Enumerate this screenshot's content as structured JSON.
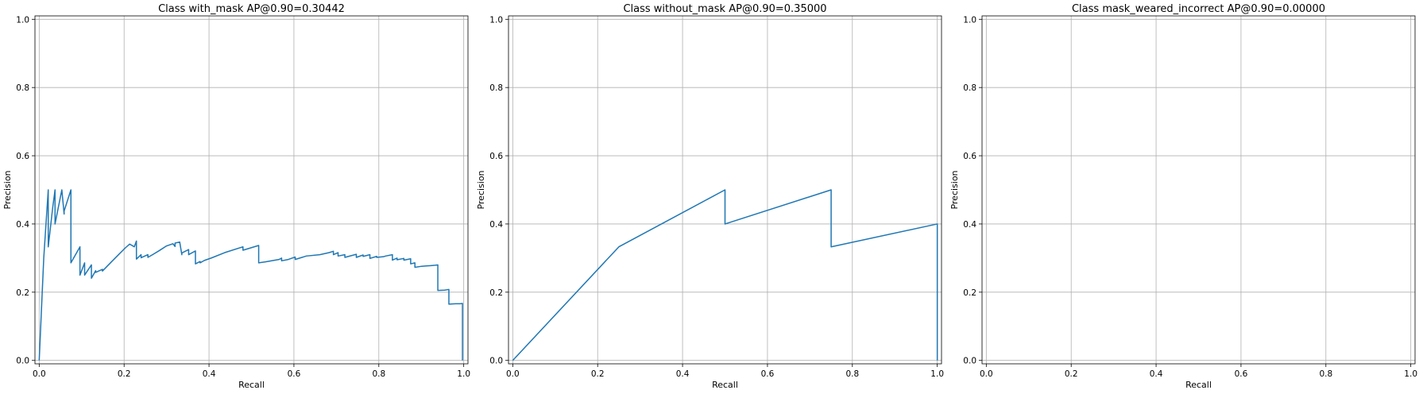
{
  "chart_data": [
    {
      "type": "line",
      "title": "Class with_mask AP@0.90=0.30442",
      "xlabel": "Recall",
      "ylabel": "Precision",
      "xlim": [
        -0.01,
        1.01
      ],
      "ylim": [
        -0.01,
        1.01
      ],
      "xticks": [
        "0.0",
        "0.2",
        "0.4",
        "0.6",
        "0.8",
        "1.0"
      ],
      "yticks": [
        "0.0",
        "0.2",
        "0.4",
        "0.6",
        "0.8",
        "1.0"
      ],
      "grid": true,
      "color": "#1f77b4",
      "series": [
        {
          "x": [
            0.0,
            0.0107,
            0.0213,
            0.0213,
            0.032,
            0.0373,
            0.0373,
            0.0533,
            0.0587,
            0.0587,
            0.0747,
            0.0747,
            0.096,
            0.096,
            0.107,
            0.107,
            0.123,
            0.123,
            0.133,
            0.133,
            0.149,
            0.149,
            0.171,
            0.187,
            0.203,
            0.213,
            0.224,
            0.229,
            0.229,
            0.24,
            0.24,
            0.256,
            0.256,
            0.267,
            0.283,
            0.299,
            0.315,
            0.32,
            0.32,
            0.331,
            0.336,
            0.336,
            0.352,
            0.352,
            0.368,
            0.368,
            0.379,
            0.379,
            0.389,
            0.405,
            0.437,
            0.48,
            0.48,
            0.517,
            0.517,
            0.533,
            0.565,
            0.571,
            0.571,
            0.587,
            0.603,
            0.603,
            0.619,
            0.629,
            0.661,
            0.683,
            0.693,
            0.693,
            0.704,
            0.704,
            0.72,
            0.72,
            0.747,
            0.747,
            0.763,
            0.763,
            0.779,
            0.779,
            0.795,
            0.795,
            0.811,
            0.816,
            0.832,
            0.832,
            0.843,
            0.843,
            0.859,
            0.859,
            0.875,
            0.875,
            0.885,
            0.885,
            0.901,
            0.912,
            0.923,
            0.933,
            0.939,
            0.939,
            0.955,
            0.96,
            0.965,
            0.965,
            0.981,
            0.981,
            0.992,
            0.997,
            0.997
          ],
          "y": [
            0.0,
            0.3,
            0.5,
            0.333,
            0.45,
            0.5,
            0.4,
            0.5,
            0.429,
            0.438,
            0.5,
            0.286,
            0.333,
            0.25,
            0.286,
            0.25,
            0.28,
            0.241,
            0.263,
            0.258,
            0.267,
            0.262,
            0.29,
            0.31,
            0.33,
            0.341,
            0.333,
            0.35,
            0.297,
            0.31,
            0.301,
            0.31,
            0.302,
            0.31,
            0.322,
            0.335,
            0.342,
            0.334,
            0.344,
            0.347,
            0.31,
            0.315,
            0.325,
            0.31,
            0.321,
            0.283,
            0.29,
            0.286,
            0.293,
            0.3,
            0.316,
            0.333,
            0.323,
            0.337,
            0.286,
            0.289,
            0.296,
            0.3,
            0.292,
            0.296,
            0.303,
            0.296,
            0.302,
            0.306,
            0.31,
            0.316,
            0.32,
            0.31,
            0.316,
            0.306,
            0.31,
            0.302,
            0.311,
            0.302,
            0.309,
            0.305,
            0.31,
            0.299,
            0.305,
            0.302,
            0.304,
            0.306,
            0.31,
            0.294,
            0.3,
            0.295,
            0.299,
            0.294,
            0.298,
            0.283,
            0.286,
            0.273,
            0.276,
            0.277,
            0.278,
            0.279,
            0.28,
            0.205,
            0.206,
            0.207,
            0.208,
            0.165,
            0.166,
            0.166,
            0.166,
            0.167,
            0.0
          ]
        }
      ]
    },
    {
      "type": "line",
      "title": "Class without_mask AP@0.90=0.35000",
      "xlabel": "Recall",
      "ylabel": "Precision",
      "xlim": [
        -0.01,
        1.01
      ],
      "ylim": [
        -0.01,
        1.01
      ],
      "xticks": [
        "0.0",
        "0.2",
        "0.4",
        "0.6",
        "0.8",
        "1.0"
      ],
      "yticks": [
        "0.0",
        "0.2",
        "0.4",
        "0.6",
        "0.8",
        "1.0"
      ],
      "grid": true,
      "color": "#1f77b4",
      "series": [
        {
          "x": [
            0.0,
            0.25,
            0.5,
            0.5,
            0.75,
            0.75,
            1.0,
            1.0
          ],
          "y": [
            0.0,
            0.333,
            0.5,
            0.4,
            0.5,
            0.333,
            0.4,
            0.0
          ]
        }
      ]
    },
    {
      "type": "line",
      "title": "Class mask_weared_incorrect AP@0.90=0.00000",
      "xlabel": "Recall",
      "ylabel": "Precision",
      "xlim": [
        -0.01,
        1.01
      ],
      "ylim": [
        -0.01,
        1.01
      ],
      "xticks": [
        "0.0",
        "0.2",
        "0.4",
        "0.6",
        "0.8",
        "1.0"
      ],
      "yticks": [
        "0.0",
        "0.2",
        "0.4",
        "0.6",
        "0.8",
        "1.0"
      ],
      "grid": true,
      "color": "#1f77b4",
      "series": []
    }
  ]
}
